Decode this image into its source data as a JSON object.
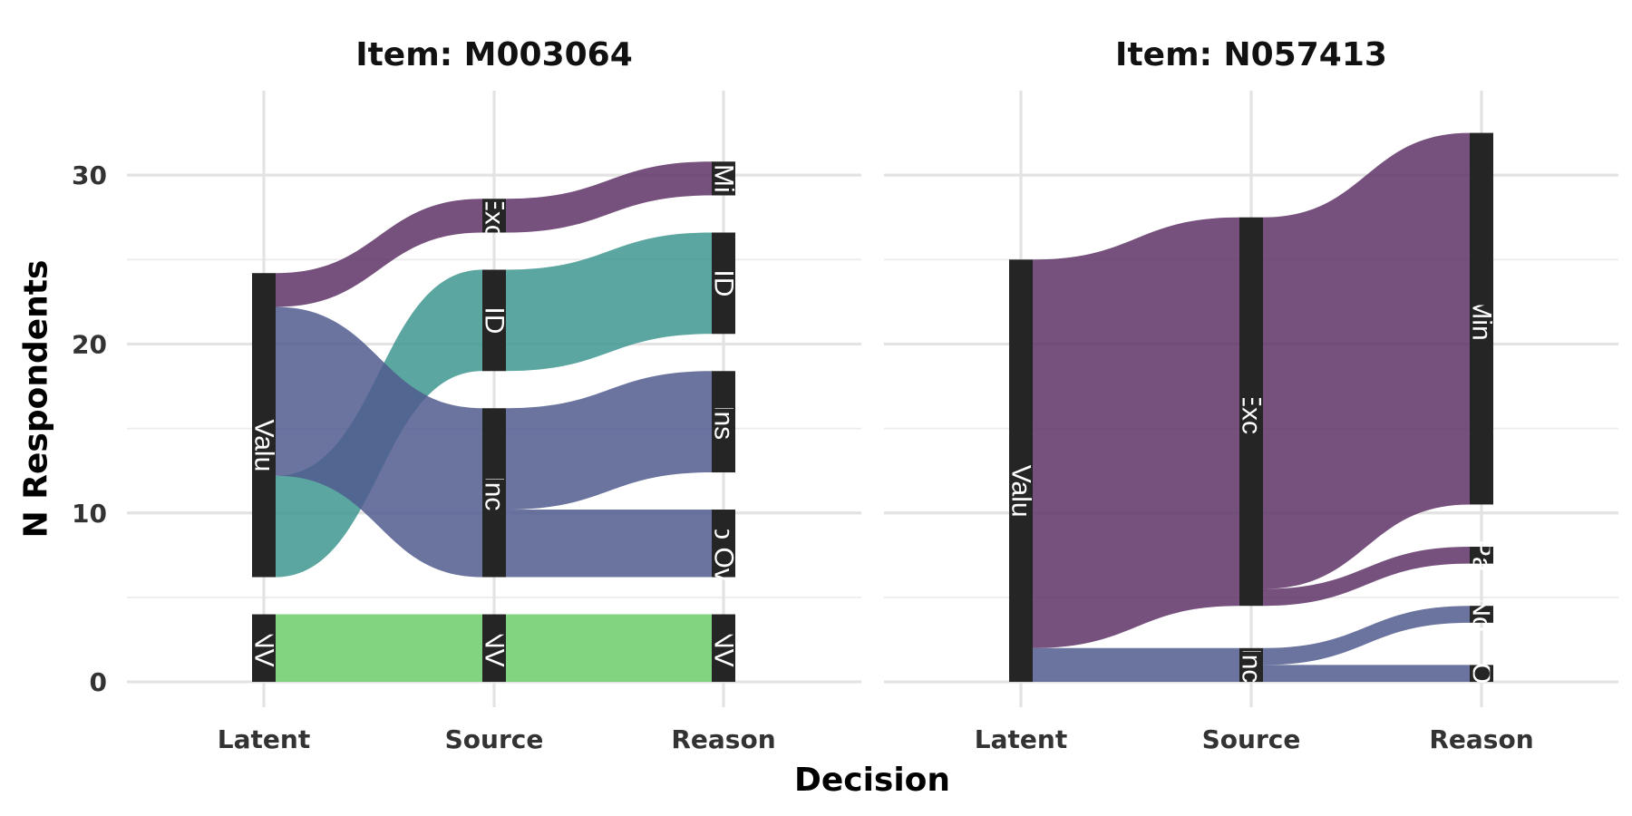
{
  "chart_data": {
    "type": "alluvial",
    "xlabel": "Decision",
    "ylabel": "N Respondents",
    "ylim": [
      -1.5,
      35
    ],
    "yticks": [
      0,
      10,
      20,
      30
    ],
    "axes": [
      "Latent",
      "Source",
      "Reason"
    ],
    "colors": {
      "purple": "#5e3266",
      "teal": "#3e9690",
      "slate": "#505c8e",
      "green": "#6ccc6a",
      "node": "#252525"
    },
    "panels": [
      {
        "title": "Item: M003064",
        "nodes": [
          {
            "axis": 0,
            "label": "NV",
            "y0": 0,
            "y1": 4
          },
          {
            "axis": 0,
            "label": "Has Value",
            "y0": 6.2,
            "y1": 24.2
          },
          {
            "axis": 1,
            "label": "NV",
            "y0": 0,
            "y1": 4
          },
          {
            "axis": 1,
            "label": "Inc",
            "y0": 6.2,
            "y1": 16.2
          },
          {
            "axis": 1,
            "label": "ID",
            "y0": 18.4,
            "y1": 24.4
          },
          {
            "axis": 1,
            "label": "Exc",
            "y0": 26.6,
            "y1": 28.6
          },
          {
            "axis": 2,
            "label": "NV",
            "y0": 0,
            "y1": 4
          },
          {
            "axis": 2,
            "label": "No Ov",
            "y0": 6.2,
            "y1": 10.2
          },
          {
            "axis": 2,
            "label": "Ins",
            "y0": 12.4,
            "y1": 18.4
          },
          {
            "axis": 2,
            "label": "ID",
            "y0": 20.6,
            "y1": 26.6
          },
          {
            "axis": 2,
            "label": "Mi",
            "y0": 28.8,
            "y1": 30.8
          }
        ],
        "flows": [
          {
            "from": 0,
            "a0": 0,
            "a1": 4,
            "to": 1,
            "b0": 0,
            "b1": 4,
            "color": "green"
          },
          {
            "from": 0,
            "a0": 6.2,
            "a1": 12.2,
            "to": 1,
            "b0": 18.4,
            "b1": 24.4,
            "color": "teal"
          },
          {
            "from": 0,
            "a0": 12.2,
            "a1": 22.2,
            "to": 1,
            "b0": 6.2,
            "b1": 16.2,
            "color": "slate"
          },
          {
            "from": 0,
            "a0": 22.2,
            "a1": 24.2,
            "to": 1,
            "b0": 26.6,
            "b1": 28.6,
            "color": "purple"
          },
          {
            "from": 1,
            "a0": 0,
            "a1": 4,
            "to": 2,
            "b0": 0,
            "b1": 4,
            "color": "green"
          },
          {
            "from": 1,
            "a0": 6.2,
            "a1": 10.2,
            "to": 2,
            "b0": 6.2,
            "b1": 10.2,
            "color": "slate"
          },
          {
            "from": 1,
            "a0": 10.2,
            "a1": 16.2,
            "to": 2,
            "b0": 12.4,
            "b1": 18.4,
            "color": "slate"
          },
          {
            "from": 1,
            "a0": 18.4,
            "a1": 24.4,
            "to": 2,
            "b0": 20.6,
            "b1": 26.6,
            "color": "teal"
          },
          {
            "from": 1,
            "a0": 26.6,
            "a1": 28.6,
            "to": 2,
            "b0": 28.8,
            "b1": 30.8,
            "color": "purple"
          }
        ]
      },
      {
        "title": "Item: N057413",
        "nodes": [
          {
            "axis": 0,
            "label": "Has Value",
            "y0": 0,
            "y1": 25
          },
          {
            "axis": 1,
            "label": "Inc",
            "y0": 0,
            "y1": 2
          },
          {
            "axis": 1,
            "label": "Exc",
            "y0": 4.5,
            "y1": 27.5
          },
          {
            "axis": 2,
            "label": "O",
            "y0": 0,
            "y1": 1
          },
          {
            "axis": 2,
            "label": "No",
            "y0": 3.5,
            "y1": 4.5
          },
          {
            "axis": 2,
            "label": "Pa",
            "y0": 7,
            "y1": 8
          },
          {
            "axis": 2,
            "label": "Min",
            "y0": 10.5,
            "y1": 32.5
          }
        ],
        "flows": [
          {
            "from": 0,
            "a0": 0,
            "a1": 2,
            "to": 1,
            "b0": 0,
            "b1": 2,
            "color": "slate"
          },
          {
            "from": 0,
            "a0": 2,
            "a1": 25,
            "to": 1,
            "b0": 4.5,
            "b1": 27.5,
            "color": "purple"
          },
          {
            "from": 1,
            "a0": 0,
            "a1": 1,
            "to": 2,
            "b0": 0,
            "b1": 1,
            "color": "slate"
          },
          {
            "from": 1,
            "a0": 1,
            "a1": 2,
            "to": 2,
            "b0": 3.5,
            "b1": 4.5,
            "color": "slate"
          },
          {
            "from": 1,
            "a0": 4.5,
            "a1": 5.5,
            "to": 2,
            "b0": 7,
            "b1": 8,
            "color": "purple"
          },
          {
            "from": 1,
            "a0": 5.5,
            "a1": 27.5,
            "to": 2,
            "b0": 10.5,
            "b1": 32.5,
            "color": "purple"
          }
        ]
      }
    ]
  }
}
